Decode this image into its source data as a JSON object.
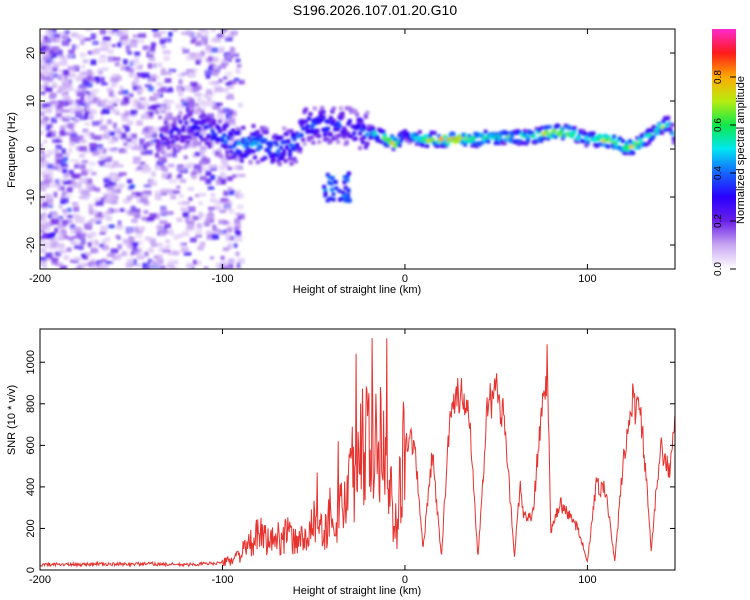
{
  "title": "S196.2026.107.01.20.G10",
  "colorbar": {
    "label": "Normalized spectral amplitude",
    "ticks": [
      "0.0",
      "0.2",
      "0.4",
      "0.6",
      "0.8"
    ],
    "colors": [
      "#ffffff",
      "#c8a6f2",
      "#6a1fe8",
      "#2a00ff",
      "#1565ff",
      "#00e6f0",
      "#10e84a",
      "#b8ec10",
      "#ffaa00",
      "#ff1a1a",
      "#ff2ad0"
    ]
  },
  "chart_data": [
    {
      "type": "heatmap",
      "title": "",
      "xlabel": "Height of straight line (km)",
      "ylabel": "Frequency (Hz)",
      "xlim": [
        -200,
        148
      ],
      "ylim": [
        -25,
        25
      ],
      "x_ticks": [
        -200,
        -100,
        0,
        100
      ],
      "y_ticks": [
        -20,
        -10,
        0,
        10,
        20
      ],
      "value_range": [
        0,
        1
      ],
      "ridge": {
        "x": [
          -130,
          -115,
          -100,
          -90,
          -80,
          -70,
          -60,
          -55,
          -45,
          -35,
          -25,
          -15,
          -10,
          -5,
          0,
          10,
          20,
          30,
          40,
          50,
          60,
          70,
          80,
          90,
          100,
          110,
          115,
          120,
          125,
          130,
          135,
          140,
          145,
          148
        ],
        "frequency": [
          3,
          5,
          2,
          1,
          1,
          0,
          1,
          5,
          5,
          5,
          4,
          3,
          2,
          1,
          3,
          2,
          2,
          2,
          2,
          2.5,
          2.5,
          2.5,
          3.5,
          3.5,
          2,
          2,
          1.5,
          0.5,
          0.5,
          1.5,
          3,
          4.5,
          5.5,
          2
        ],
        "amplitude": [
          0.3,
          0.35,
          0.4,
          0.45,
          0.45,
          0.4,
          0.45,
          0.35,
          0.4,
          0.35,
          0.35,
          0.55,
          0.7,
          0.8,
          0.35,
          0.7,
          0.8,
          0.85,
          0.75,
          0.65,
          0.6,
          0.7,
          0.85,
          0.8,
          0.55,
          0.85,
          0.8,
          0.75,
          0.85,
          0.75,
          0.55,
          0.7,
          0.6,
          0.45
        ]
      }
    },
    {
      "type": "line",
      "title": "",
      "xlabel": "Height of straight line (km)",
      "ylabel": "SNR (10 * v/v)",
      "xlim": [
        -200,
        148
      ],
      "ylim": [
        0,
        1160
      ],
      "x_ticks": [
        -200,
        -100,
        0,
        100
      ],
      "y_ticks": [
        0,
        200,
        400,
        600,
        800,
        1000
      ],
      "series": [
        {
          "name": "SNR",
          "color": "#e8322e",
          "x": [
            -200,
            -190,
            -180,
            -170,
            -160,
            -150,
            -140,
            -130,
            -120,
            -110,
            -100,
            -95,
            -90,
            -85,
            -80,
            -75,
            -70,
            -65,
            -60,
            -55,
            -50,
            -45,
            -40,
            -35,
            -30,
            -25,
            -20,
            -15,
            -10,
            -5,
            -3,
            0,
            5,
            10,
            15,
            20,
            25,
            30,
            35,
            40,
            45,
            50,
            55,
            60,
            63,
            65,
            70,
            75,
            78,
            80,
            85,
            90,
            95,
            100,
            105,
            110,
            115,
            120,
            125,
            130,
            135,
            140,
            145,
            148
          ],
          "y": [
            25,
            28,
            25,
            30,
            27,
            28,
            30,
            27,
            25,
            30,
            35,
            50,
            80,
            120,
            170,
            140,
            150,
            180,
            130,
            160,
            230,
            180,
            250,
            300,
            420,
            620,
            580,
            700,
            650,
            120,
            380,
            640,
            620,
            100,
            560,
            60,
            820,
            840,
            800,
            60,
            780,
            860,
            700,
            60,
            400,
            250,
            260,
            780,
            980,
            180,
            320,
            260,
            200,
            40,
            420,
            380,
            40,
            560,
            820,
            700,
            90,
            620,
            460,
            740
          ]
        }
      ]
    }
  ]
}
